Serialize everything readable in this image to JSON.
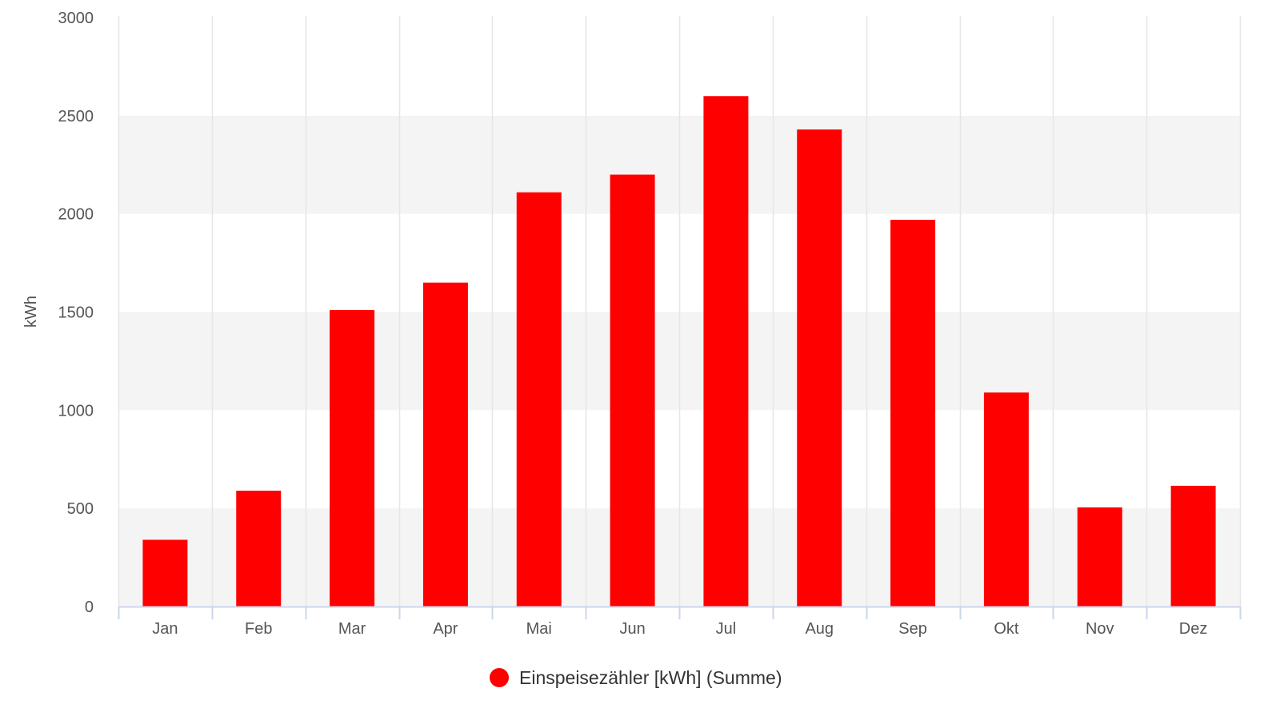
{
  "chart_data": {
    "type": "bar",
    "categories": [
      "Jan",
      "Feb",
      "Mar",
      "Apr",
      "Mai",
      "Jun",
      "Jul",
      "Aug",
      "Sep",
      "Okt",
      "Nov",
      "Dez"
    ],
    "series": [
      {
        "name": "Einspeisezähler [kWh] (Summe)",
        "color": "#ff0000",
        "values": [
          340,
          590,
          1510,
          1650,
          2110,
          2200,
          2600,
          2430,
          1970,
          1090,
          505,
          615
        ]
      }
    ],
    "title": "",
    "xlabel": "",
    "ylabel": "kWh",
    "ylim": [
      0,
      3000
    ],
    "yticks": [
      0,
      500,
      1000,
      1500,
      2000,
      2500,
      3000
    ],
    "grid": "alternating horizontal bands, vertical category dividers",
    "legend": "bottom-center",
    "colors": {
      "bar": "#ff0000",
      "band": "#f4f4f4",
      "gridline": "#e6e6e6",
      "axis": "#ccd6eb",
      "text": "#555555"
    }
  }
}
